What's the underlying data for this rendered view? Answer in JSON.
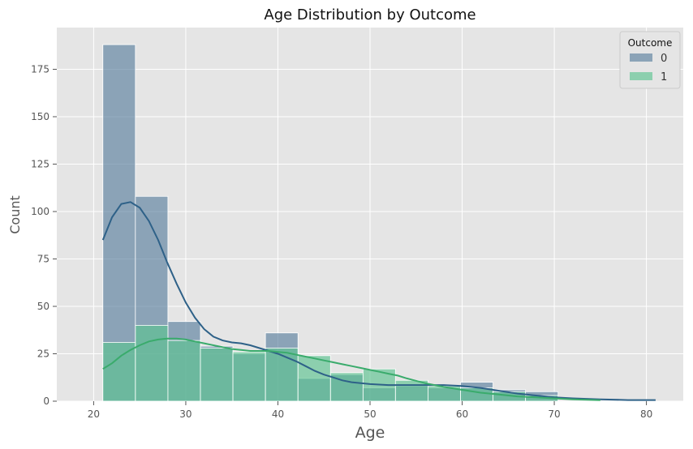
{
  "chart_data": {
    "type": "histogram",
    "title": "Age Distribution by Outcome",
    "xlabel": "Age",
    "ylabel": "Count",
    "xlim": [
      16,
      84
    ],
    "ylim": [
      0,
      197
    ],
    "xticks": [
      "20",
      "30",
      "40",
      "50",
      "60",
      "70",
      "80"
    ],
    "yticks": [
      "0",
      "25",
      "50",
      "75",
      "100",
      "125",
      "150",
      "175"
    ],
    "grid": true,
    "legend": {
      "title": "Outcome",
      "placement": "top-right"
    },
    "bin_edges": [
      21,
      24.53,
      28.06,
      31.59,
      35.12,
      38.65,
      42.18,
      45.71,
      49.24,
      52.76,
      56.29,
      59.82,
      63.35,
      66.88,
      70.41
    ],
    "series": [
      {
        "name": "0",
        "color": "#5b7f9e",
        "kde_color": "#2e6188",
        "values": [
          188,
          108,
          42,
          29,
          25,
          36,
          12,
          14,
          7,
          8,
          7,
          10,
          6,
          5
        ],
        "kde": [
          [
            21,
            85
          ],
          [
            22,
            97
          ],
          [
            23,
            104
          ],
          [
            24,
            105
          ],
          [
            25,
            102
          ],
          [
            26,
            95
          ],
          [
            27,
            85
          ],
          [
            28,
            73
          ],
          [
            29,
            62
          ],
          [
            30,
            52
          ],
          [
            31,
            44
          ],
          [
            32,
            38
          ],
          [
            33,
            34
          ],
          [
            34,
            32
          ],
          [
            35,
            31
          ],
          [
            36,
            30.5
          ],
          [
            37,
            29.5
          ],
          [
            38,
            28
          ],
          [
            39,
            26.5
          ],
          [
            40,
            25
          ],
          [
            41,
            23
          ],
          [
            42,
            21
          ],
          [
            43,
            18.5
          ],
          [
            44,
            16
          ],
          [
            45,
            14
          ],
          [
            46,
            12.5
          ],
          [
            47,
            11
          ],
          [
            48,
            10
          ],
          [
            49,
            9.5
          ],
          [
            50,
            9
          ],
          [
            52,
            8.5
          ],
          [
            54,
            8.5
          ],
          [
            56,
            8.5
          ],
          [
            58,
            8.5
          ],
          [
            60,
            8
          ],
          [
            62,
            7
          ],
          [
            64,
            5.5
          ],
          [
            66,
            4
          ],
          [
            68,
            3
          ],
          [
            70,
            2
          ],
          [
            72,
            1.5
          ],
          [
            75,
            1
          ],
          [
            78,
            0.6
          ],
          [
            81,
            0.6
          ]
        ]
      },
      {
        "name": "1",
        "color": "#5cc391",
        "kde_color": "#3aab6c",
        "values": [
          31,
          40,
          32,
          28,
          26,
          28,
          24,
          15,
          17,
          11,
          8,
          7,
          5,
          3
        ],
        "kde": [
          [
            21,
            17
          ],
          [
            22,
            20
          ],
          [
            23,
            24
          ],
          [
            24,
            27
          ],
          [
            25,
            29.5
          ],
          [
            26,
            31.5
          ],
          [
            27,
            32.5
          ],
          [
            28,
            33
          ],
          [
            29,
            33
          ],
          [
            30,
            32.5
          ],
          [
            31,
            31.5
          ],
          [
            32,
            30.5
          ],
          [
            33,
            29.5
          ],
          [
            34,
            28.5
          ],
          [
            35,
            27.5
          ],
          [
            36,
            27
          ],
          [
            37,
            26.5
          ],
          [
            38,
            26.5
          ],
          [
            39,
            26.5
          ],
          [
            40,
            26
          ],
          [
            41,
            25.5
          ],
          [
            42,
            24.5
          ],
          [
            43,
            23.5
          ],
          [
            44,
            22.5
          ],
          [
            45,
            21.5
          ],
          [
            46,
            20.5
          ],
          [
            47,
            19.5
          ],
          [
            48,
            18.5
          ],
          [
            49,
            17.5
          ],
          [
            50,
            16.5
          ],
          [
            51,
            15.5
          ],
          [
            52,
            14.5
          ],
          [
            53,
            13.5
          ],
          [
            54,
            12
          ],
          [
            56,
            9.5
          ],
          [
            58,
            7.5
          ],
          [
            60,
            6
          ],
          [
            62,
            4.5
          ],
          [
            64,
            3.5
          ],
          [
            66,
            2.5
          ],
          [
            68,
            2
          ],
          [
            70,
            1.5
          ],
          [
            72,
            1
          ],
          [
            75,
            0.5
          ]
        ]
      }
    ]
  }
}
